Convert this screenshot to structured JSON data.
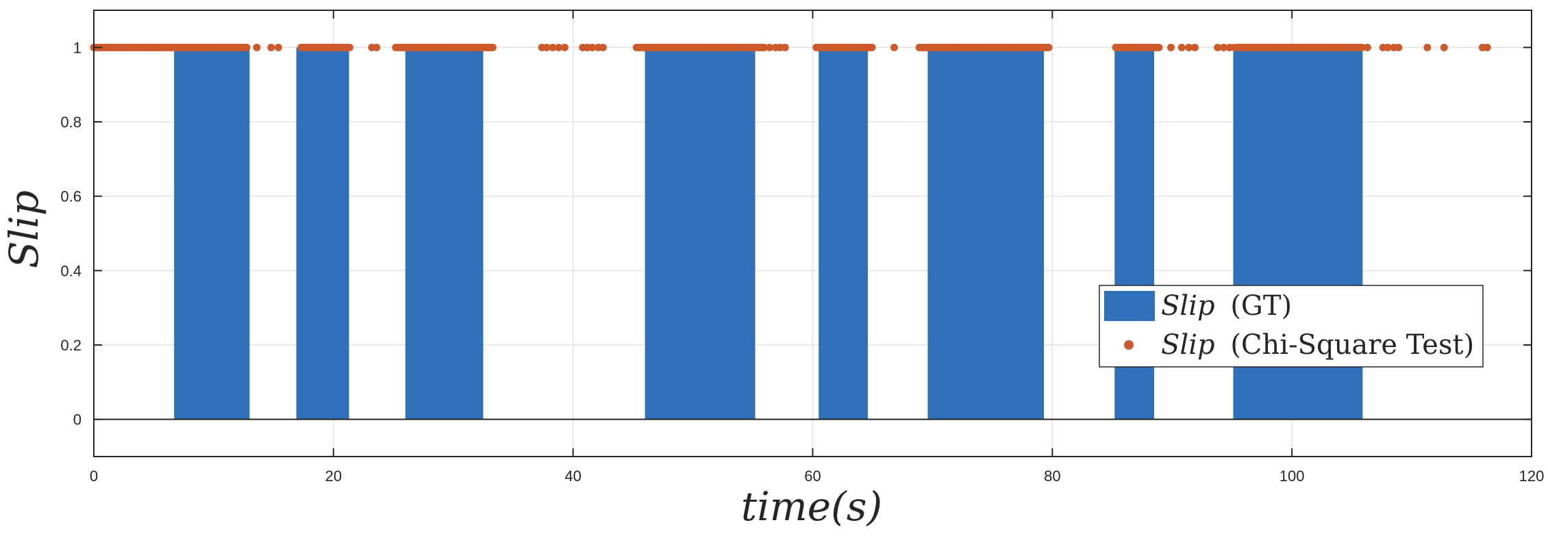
{
  "chart_data": {
    "type": "bar",
    "title": "",
    "xlabel": "time(s)",
    "ylabel": "Slip",
    "xlim": [
      0,
      120
    ],
    "ylim": [
      -0.1,
      1.1
    ],
    "x_ticks": [
      0,
      20,
      40,
      60,
      80,
      100,
      120
    ],
    "x_tick_labels": [
      "0",
      "20",
      "40",
      "60",
      "80",
      "100",
      "120"
    ],
    "y_ticks": [
      0,
      0.2,
      0.4,
      0.6,
      0.8,
      1
    ],
    "y_tick_labels": [
      "0",
      "0.2",
      "0.4",
      "0.6",
      "0.8",
      "1"
    ],
    "grid": true,
    "legend_position": "lower-right",
    "series": [
      {
        "name_italic": "Slip",
        "name_suffix": "(GT)",
        "kind": "bar-intervals",
        "color": "#3070b8",
        "value": 1,
        "intervals": [
          [
            6.7,
            13.0
          ],
          [
            16.9,
            21.3
          ],
          [
            26.0,
            32.5
          ],
          [
            46.0,
            55.2
          ],
          [
            60.5,
            64.6
          ],
          [
            69.6,
            79.3
          ],
          [
            85.2,
            88.5
          ],
          [
            95.1,
            105.9
          ]
        ]
      },
      {
        "name_italic": "Slip",
        "name_suffix": "(Chi-Square Test)",
        "kind": "scatter",
        "color": "#cc5a2a",
        "value": 1,
        "dense_runs": [
          [
            0.0,
            12.8
          ],
          [
            17.3,
            21.4
          ],
          [
            25.2,
            33.3
          ],
          [
            45.3,
            56.0
          ],
          [
            60.3,
            65.0
          ],
          [
            68.9,
            79.8
          ],
          [
            85.3,
            89.0
          ],
          [
            95.5,
            105.9
          ]
        ],
        "points": [
          13.6,
          14.8,
          15.4,
          23.2,
          23.6,
          37.4,
          37.8,
          38.3,
          38.8,
          39.3,
          40.8,
          41.2,
          41.6,
          42.1,
          42.5,
          55.9,
          56.4,
          56.9,
          57.3,
          57.7,
          66.8,
          69.4,
          89.9,
          90.8,
          91.4,
          91.9,
          93.8,
          94.3,
          94.8,
          95.2,
          106.3,
          107.6,
          108.0,
          108.5,
          108.9,
          111.3,
          112.7,
          115.9,
          116.3
        ]
      }
    ]
  }
}
